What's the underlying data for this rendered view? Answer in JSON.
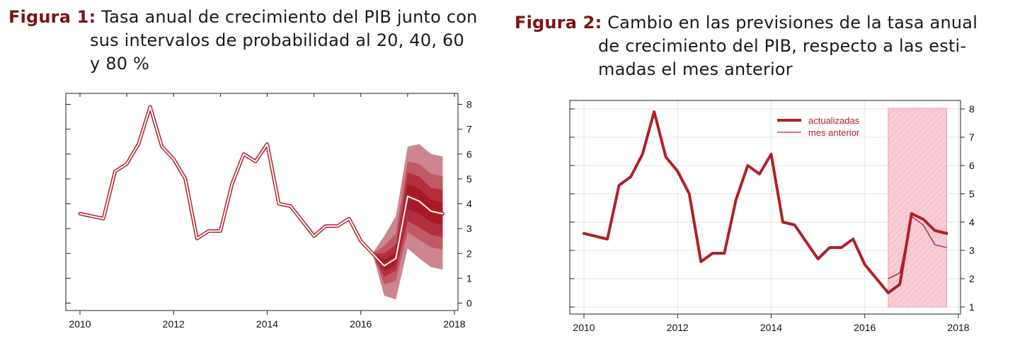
{
  "figure1": {
    "label": "Figura 1:",
    "title_lines": [
      "Tasa anual de crecimiento del PIB junto con",
      "sus intervalos de probabilidad al 20, 40, 60",
      "y 80 %"
    ]
  },
  "figure2": {
    "label": "Figura 2:",
    "title_lines": [
      "Cambio en las previsiones de la tasa anual",
      "de crecimiento del PIB, respecto a las esti-",
      "madas el mes anterior"
    ]
  },
  "colors": {
    "main_line": "#b0202a",
    "fan_80": "#cd8590",
    "fan_60": "#c15865",
    "fan_40": "#b32f3d",
    "fan_20": "#a81a26",
    "forecast_window": "#f8cdd6",
    "legend_text": "#b0202a"
  },
  "chart_data": [
    {
      "type": "line",
      "panel": "figure1",
      "x_ticks": [
        "2010",
        "2012",
        "2014",
        "2016",
        "2018"
      ],
      "y_ticks": [
        "0",
        "1",
        "2",
        "3",
        "4",
        "5",
        "6",
        "7",
        "8"
      ],
      "xlim": [
        2010,
        2018
      ],
      "ylim": [
        0,
        8
      ],
      "y_axis_side": "right",
      "grid": false,
      "series": [
        {
          "x": [
            2010,
            2010.25,
            2010.5,
            2010.75,
            2011,
            2011.25,
            2011.5,
            2011.75,
            2012,
            2012.25,
            2012.5,
            2012.75,
            2013,
            2013.25,
            2013.5,
            2013.75,
            2014,
            2014.25,
            2014.5,
            2014.75,
            2015,
            2015.25,
            2015.5,
            2015.75,
            2016,
            2016.25,
            2016.5,
            2016.75,
            2017,
            2017.25,
            2017.5,
            2017.75
          ],
          "y": [
            3.6,
            3.5,
            3.4,
            5.3,
            5.6,
            6.4,
            7.9,
            6.3,
            5.8,
            5.0,
            2.6,
            2.9,
            2.9,
            4.8,
            6.0,
            5.7,
            6.4,
            4.0,
            3.9,
            3.3,
            2.7,
            3.1,
            3.1,
            3.4,
            2.5,
            2.0,
            1.5,
            1.8,
            4.3,
            4.1,
            3.7,
            3.6
          ]
        }
      ],
      "fan_x": [
        2016.25,
        2016.5,
        2016.75,
        2017,
        2017.25,
        2017.5,
        2017.75
      ],
      "fan_bands": [
        {
          "level": "80%",
          "lower": [
            2.0,
            0.3,
            0.15,
            2.2,
            1.8,
            1.45,
            1.35
          ],
          "upper": [
            2.0,
            2.7,
            3.5,
            6.3,
            6.4,
            6.0,
            5.9
          ]
        },
        {
          "level": "60%",
          "lower": [
            2.0,
            0.75,
            0.9,
            2.85,
            2.55,
            2.25,
            2.15
          ],
          "upper": [
            2.0,
            2.3,
            2.8,
            5.7,
            5.6,
            5.2,
            5.1
          ]
        },
        {
          "level": "40%",
          "lower": [
            2.0,
            1.05,
            1.3,
            3.3,
            3.05,
            2.75,
            2.65
          ],
          "upper": [
            2.0,
            2.0,
            2.35,
            5.25,
            5.1,
            4.65,
            4.55
          ]
        },
        {
          "level": "20%",
          "lower": [
            2.0,
            1.3,
            1.55,
            3.8,
            3.6,
            3.25,
            3.15
          ],
          "upper": [
            2.0,
            1.75,
            2.05,
            4.8,
            4.6,
            4.15,
            4.05
          ]
        }
      ]
    },
    {
      "type": "line",
      "panel": "figure2",
      "x_ticks": [
        "2010",
        "2012",
        "2014",
        "2016",
        "2018"
      ],
      "y_ticks": [
        "1",
        "2",
        "3",
        "4",
        "5",
        "6",
        "7",
        "8"
      ],
      "xlim": [
        2010,
        2018
      ],
      "ylim": [
        1,
        8
      ],
      "y_axis_side": "right",
      "grid": true,
      "legend_position": "top-right",
      "shaded_region": [
        2016.5,
        2017.75
      ],
      "series": [
        {
          "name": "actualizadas",
          "x": [
            2010,
            2010.25,
            2010.5,
            2010.75,
            2011,
            2011.25,
            2011.5,
            2011.75,
            2012,
            2012.25,
            2012.5,
            2012.75,
            2013,
            2013.25,
            2013.5,
            2013.75,
            2014,
            2014.25,
            2014.5,
            2014.75,
            2015,
            2015.25,
            2015.5,
            2015.75,
            2016,
            2016.25,
            2016.5,
            2016.75,
            2017,
            2017.25,
            2017.5,
            2017.75
          ],
          "y": [
            3.6,
            3.5,
            3.4,
            5.3,
            5.6,
            6.4,
            7.9,
            6.3,
            5.8,
            5.0,
            2.6,
            2.9,
            2.9,
            4.8,
            6.0,
            5.7,
            6.4,
            4.0,
            3.9,
            3.3,
            2.7,
            3.1,
            3.1,
            3.4,
            2.5,
            2.0,
            1.5,
            1.8,
            4.3,
            4.1,
            3.7,
            3.6
          ]
        },
        {
          "name": "mes anterior",
          "x": [
            2016.5,
            2016.75,
            2017,
            2017.25,
            2017.5,
            2017.75
          ],
          "y": [
            2.0,
            2.2,
            4.2,
            3.9,
            3.2,
            3.1
          ]
        }
      ]
    }
  ]
}
